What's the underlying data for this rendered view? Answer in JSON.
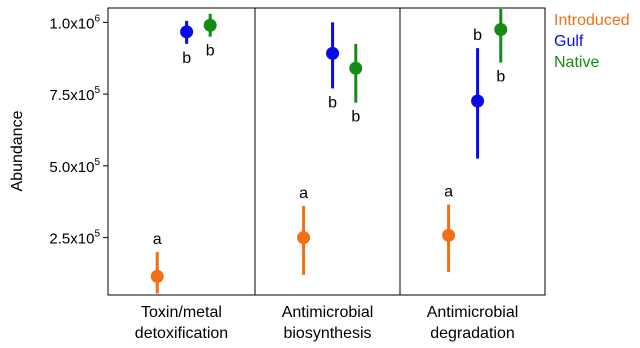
{
  "chart_data": {
    "type": "scatter",
    "subtype": "point-range (mean with interval) by facet",
    "ylabel": "Abundance",
    "ylim": [
      50000,
      1050000
    ],
    "y_ticks": [
      {
        "value": 250000,
        "mantissa": "2.5x10",
        "exp": "5"
      },
      {
        "value": 500000,
        "mantissa": "5.0x10",
        "exp": "5"
      },
      {
        "value": 750000,
        "mantissa": "7.5x10",
        "exp": "5"
      },
      {
        "value": 1000000,
        "mantissa": "1.0x10",
        "exp": "6"
      }
    ],
    "grid": false,
    "legend_position": "top-right, outside plot",
    "series": [
      {
        "name": "Introduced",
        "color": "#f26f13"
      },
      {
        "name": "Gulf",
        "color": "#0a0ae8"
      },
      {
        "name": "Native",
        "color": "#148c14"
      }
    ],
    "facets": [
      {
        "label_lines": [
          "Toxin/metal",
          "detoxification"
        ],
        "points": [
          {
            "series": "Introduced",
            "y": 115000,
            "lo": 55000,
            "hi": 200000,
            "letter": "a",
            "letter_pos": "above"
          },
          {
            "series": "Gulf",
            "y": 967000,
            "lo": 925000,
            "hi": 1005000,
            "letter": "b",
            "letter_pos": "below"
          },
          {
            "series": "Native",
            "y": 990000,
            "lo": 950000,
            "hi": 1030000,
            "letter": "b",
            "letter_pos": "below"
          }
        ]
      },
      {
        "label_lines": [
          "Antimicrobial",
          "biosynthesis"
        ],
        "points": [
          {
            "series": "Introduced",
            "y": 250000,
            "lo": 120000,
            "hi": 360000,
            "letter": "a",
            "letter_pos": "above"
          },
          {
            "series": "Gulf",
            "y": 892000,
            "lo": 770000,
            "hi": 1000000,
            "letter": "b",
            "letter_pos": "below"
          },
          {
            "series": "Native",
            "y": 840000,
            "lo": 720000,
            "hi": 925000,
            "letter": "b",
            "letter_pos": "below"
          }
        ]
      },
      {
        "label_lines": [
          "Antimicrobial",
          "degradation"
        ],
        "points": [
          {
            "series": "Introduced",
            "y": 258000,
            "lo": 130000,
            "hi": 365000,
            "letter": "a",
            "letter_pos": "above"
          },
          {
            "series": "Gulf",
            "y": 726000,
            "lo": 525000,
            "hi": 910000,
            "letter": "b",
            "letter_pos": "above"
          },
          {
            "series": "Native",
            "y": 975000,
            "lo": 860000,
            "hi": 1050000,
            "letter": "b",
            "letter_pos": "below"
          }
        ]
      }
    ]
  }
}
